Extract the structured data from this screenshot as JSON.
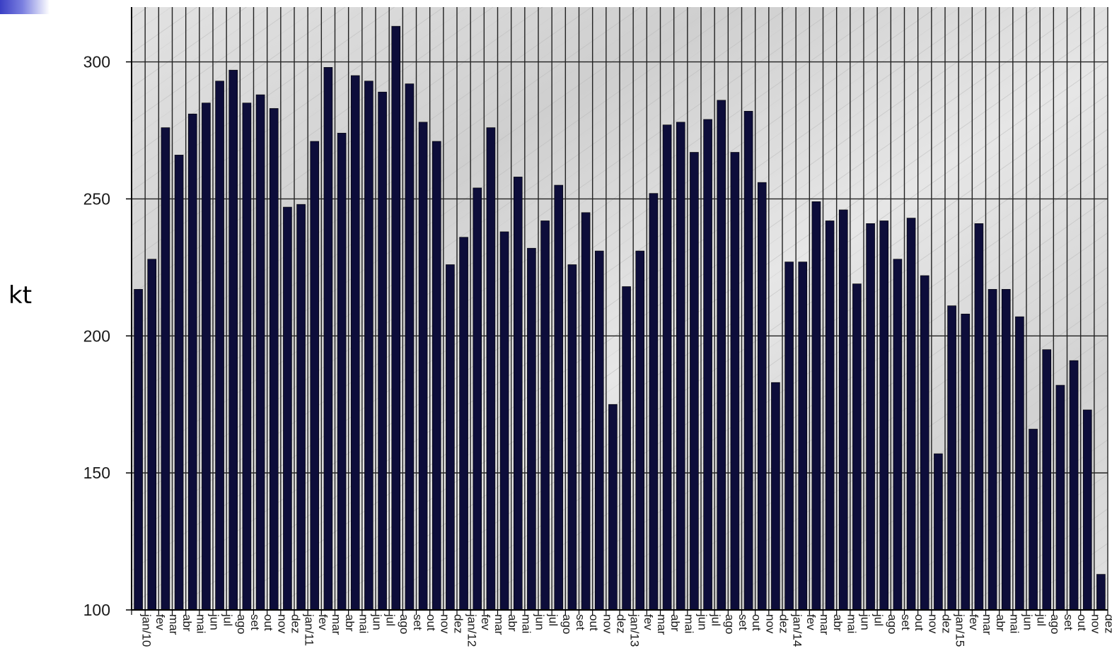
{
  "chart_data": {
    "type": "bar",
    "title": "",
    "xlabel": "",
    "ylabel": "kt",
    "ylim": [
      100,
      320
    ],
    "yticks": [
      100,
      150,
      200,
      250,
      300
    ],
    "grid": true,
    "colors": {
      "bar": "#0d0d3a",
      "grid": "#222222",
      "plot_background": "#dcdcdc"
    },
    "categories": [
      "jan/10",
      "fev",
      "mar",
      "abr",
      "mai",
      "jun",
      "jul",
      "ago",
      "set",
      "out",
      "nov",
      "dez",
      "jan/11",
      "fev",
      "mar",
      "abr",
      "mai",
      "jun",
      "jul",
      "ago",
      "set",
      "out",
      "nov",
      "dez",
      "jan/12",
      "fev",
      "mar",
      "abr",
      "mai",
      "jun",
      "jul",
      "ago",
      "set",
      "out",
      "nov",
      "dez",
      "jan/13",
      "fev",
      "mar",
      "abr",
      "mai",
      "jun",
      "jul",
      "ago",
      "set",
      "out",
      "nov",
      "dez",
      "jan/14",
      "fev",
      "mar",
      "abr",
      "mai",
      "jun",
      "jul",
      "ago",
      "set",
      "out",
      "nov",
      "dez",
      "jan/15",
      "fev",
      "mar",
      "abr",
      "mai",
      "jun",
      "jul",
      "ago",
      "set",
      "out",
      "nov",
      "dez"
    ],
    "values": [
      217,
      228,
      276,
      266,
      281,
      285,
      293,
      297,
      285,
      288,
      283,
      247,
      248,
      271,
      298,
      274,
      295,
      293,
      289,
      313,
      292,
      278,
      271,
      226,
      236,
      254,
      276,
      238,
      258,
      232,
      242,
      255,
      226,
      245,
      231,
      175,
      218,
      231,
      252,
      277,
      278,
      267,
      279,
      286,
      267,
      282,
      256,
      183,
      227,
      227,
      249,
      242,
      246,
      219,
      241,
      242,
      228,
      243,
      222,
      157,
      211,
      208,
      241,
      217,
      217,
      207,
      166,
      195,
      182,
      191,
      173,
      113
    ]
  }
}
